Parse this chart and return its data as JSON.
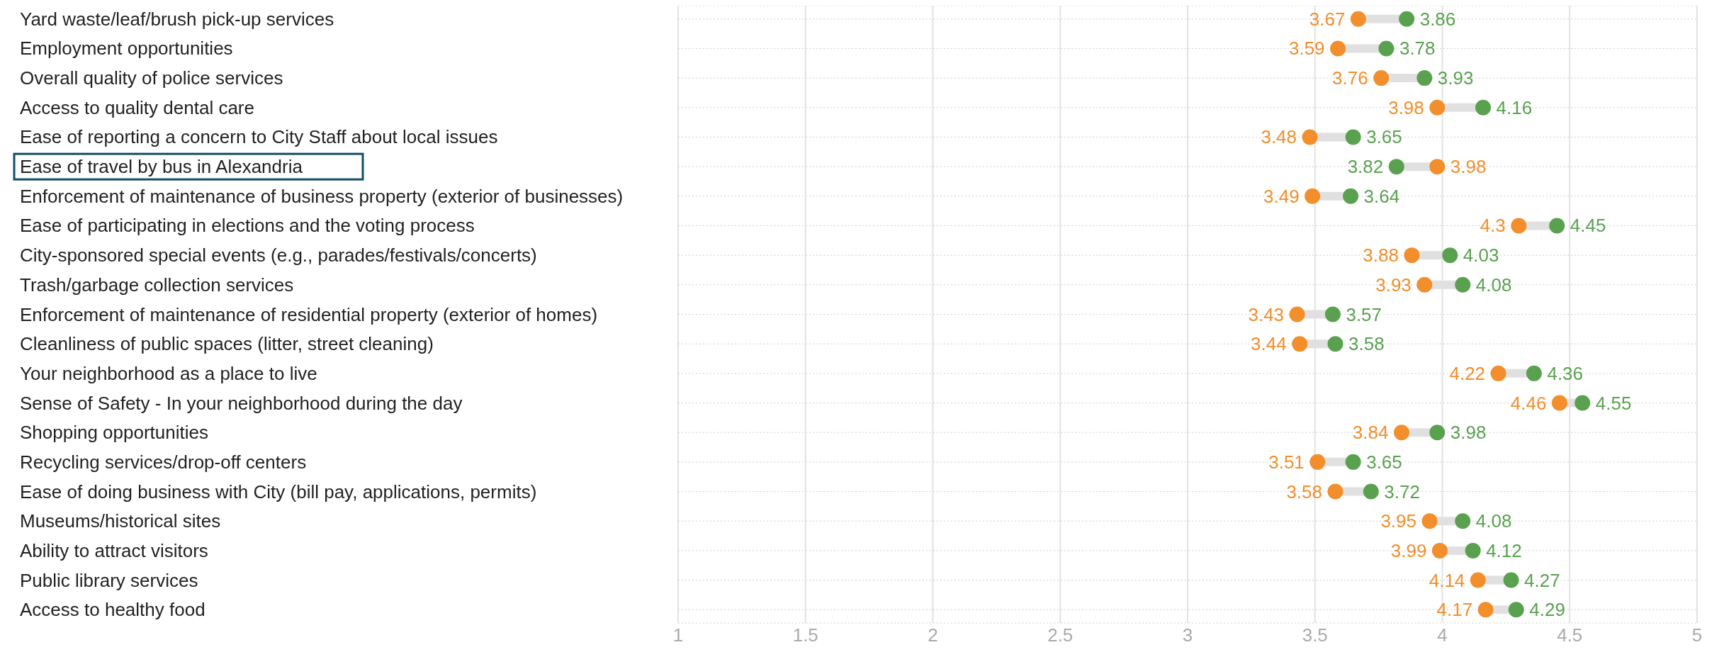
{
  "chart_data": {
    "type": "scatter",
    "categories": [
      "Yard waste/leaf/brush pick-up services",
      "Employment opportunities",
      "Overall quality of police services",
      "Access to quality dental care",
      "Ease of reporting a concern to City Staff about local issues",
      "Ease of travel by bus in Alexandria",
      "Enforcement of maintenance of business property (exterior of businesses)",
      "Ease of participating in elections and the voting process",
      "City-sponsored special events (e.g., parades/festivals/concerts)",
      "Trash/garbage collection services",
      "Enforcement of maintenance of residential property (exterior of homes)",
      "Cleanliness of public spaces (litter, street cleaning)",
      "Your neighborhood as a place to live",
      "Sense of Safety - In your neighborhood during the day",
      "Shopping opportunities",
      "Recycling services/drop-off centers",
      "Ease of doing business with City (bill pay, applications, permits)",
      "Museums/historical sites",
      "Ability to attract visitors",
      "Public library services",
      "Access to healthy food"
    ],
    "series": [
      {
        "color": "#f28e2b",
        "values": [
          3.67,
          3.59,
          3.76,
          3.98,
          3.48,
          3.98,
          3.49,
          4.3,
          3.88,
          3.93,
          3.43,
          3.44,
          4.22,
          4.46,
          3.84,
          3.51,
          3.58,
          3.95,
          3.99,
          4.14,
          4.17
        ]
      },
      {
        "color": "#59a14f",
        "values": [
          3.86,
          3.78,
          3.93,
          4.16,
          3.65,
          3.82,
          3.64,
          4.45,
          4.03,
          4.08,
          3.57,
          3.58,
          4.36,
          4.55,
          3.98,
          3.65,
          3.72,
          4.08,
          4.12,
          4.27,
          4.29
        ]
      }
    ],
    "orientation": "horizontal",
    "xlim": [
      1,
      5
    ],
    "xticks": [
      1,
      1.5,
      2,
      2.5,
      3,
      3.5,
      4,
      4.5,
      5
    ],
    "grid": true,
    "data_labels": true,
    "marker": "circle"
  }
}
